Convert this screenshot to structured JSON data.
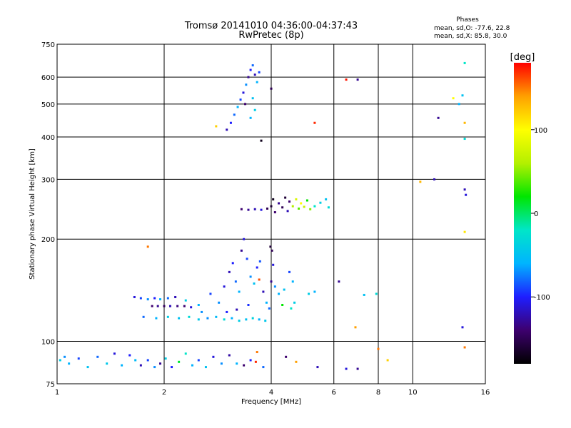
{
  "chart_data": {
    "type": "scatter",
    "title": "Tromsø 20141010 04:36:00-04:37:43",
    "subtitle": "RwPretec (8p)",
    "xlabel": "Frequency [MHz]",
    "ylabel": "Stationary phase Virtual Height [km]",
    "xscale": "log",
    "yscale": "log",
    "xlim": [
      1,
      16
    ],
    "ylim": [
      75,
      750
    ],
    "xticks": [
      1,
      2,
      4,
      6,
      8,
      10,
      16
    ],
    "yticks": [
      75,
      100,
      200,
      300,
      400,
      500,
      600,
      750
    ],
    "grid": true,
    "legend": {
      "heading": "Phases",
      "line1": "mean, sd,O:  -77.6, 22.8",
      "line2": "mean, sd,X:  85.8, 30.0",
      "placement": "top-right"
    },
    "colorbar": {
      "label": "[deg]",
      "range": [
        -180,
        180
      ],
      "ticks": [
        100,
        0,
        -100
      ],
      "colors": [
        "#000000",
        "#3d006e",
        "#1e1eff",
        "#00b4ff",
        "#00e6c8",
        "#00e600",
        "#b4f000",
        "#ffff00",
        "#ffa000",
        "#ff0000"
      ]
    },
    "series": [
      {
        "points": [
          {
            "x": 1.02,
            "y": 88,
            "p": -40
          },
          {
            "x": 1.05,
            "y": 90,
            "p": -70
          },
          {
            "x": 1.08,
            "y": 86,
            "p": -60
          },
          {
            "x": 1.15,
            "y": 89,
            "p": -90
          },
          {
            "x": 1.22,
            "y": 84,
            "p": -50
          },
          {
            "x": 1.3,
            "y": 90,
            "p": -80
          },
          {
            "x": 1.38,
            "y": 86,
            "p": -45
          },
          {
            "x": 1.45,
            "y": 92,
            "p": -110
          },
          {
            "x": 1.52,
            "y": 85,
            "p": -60
          },
          {
            "x": 1.6,
            "y": 91,
            "p": -100
          },
          {
            "x": 1.66,
            "y": 88,
            "p": -55
          },
          {
            "x": 1.72,
            "y": 85,
            "p": -120
          },
          {
            "x": 1.8,
            "y": 88,
            "p": -90
          },
          {
            "x": 1.88,
            "y": 84,
            "p": -70
          },
          {
            "x": 1.95,
            "y": 86,
            "p": -130
          },
          {
            "x": 2.02,
            "y": 89,
            "p": -40
          },
          {
            "x": 2.1,
            "y": 84,
            "p": -100
          },
          {
            "x": 2.2,
            "y": 87,
            "p": 10
          },
          {
            "x": 2.3,
            "y": 92,
            "p": -20
          },
          {
            "x": 2.4,
            "y": 85,
            "p": -60
          },
          {
            "x": 2.5,
            "y": 88,
            "p": -90
          },
          {
            "x": 2.62,
            "y": 84,
            "p": -50
          },
          {
            "x": 2.75,
            "y": 90,
            "p": -110
          },
          {
            "x": 2.9,
            "y": 86,
            "p": -70
          },
          {
            "x": 3.05,
            "y": 91,
            "p": -125
          },
          {
            "x": 3.2,
            "y": 86,
            "p": -60
          },
          {
            "x": 3.35,
            "y": 85,
            "p": -140
          },
          {
            "x": 3.5,
            "y": 88,
            "p": -100
          },
          {
            "x": 3.62,
            "y": 87,
            "p": 170
          },
          {
            "x": 3.65,
            "y": 93,
            "p": 150
          },
          {
            "x": 3.8,
            "y": 84,
            "p": -80
          },
          {
            "x": 4.4,
            "y": 90,
            "p": -140
          },
          {
            "x": 4.7,
            "y": 87,
            "p": 140
          },
          {
            "x": 5.4,
            "y": 84,
            "p": -120
          },
          {
            "x": 6.5,
            "y": 83,
            "p": -110
          },
          {
            "x": 7.0,
            "y": 83,
            "p": -130
          },
          {
            "x": 8.0,
            "y": 95,
            "p": 150
          },
          {
            "x": 8.5,
            "y": 88,
            "p": 120
          },
          {
            "x": 14.0,
            "y": 96,
            "p": 150
          },
          {
            "x": 1.65,
            "y": 135,
            "p": -110
          },
          {
            "x": 1.72,
            "y": 134,
            "p": -90
          },
          {
            "x": 1.8,
            "y": 133,
            "p": -70
          },
          {
            "x": 1.88,
            "y": 134,
            "p": -100
          },
          {
            "x": 1.95,
            "y": 133,
            "p": -60
          },
          {
            "x": 2.05,
            "y": 134,
            "p": -80
          },
          {
            "x": 2.15,
            "y": 135,
            "p": -120
          },
          {
            "x": 1.85,
            "y": 127,
            "p": -140
          },
          {
            "x": 1.92,
            "y": 127,
            "p": -130
          },
          {
            "x": 2.0,
            "y": 127,
            "p": -145
          },
          {
            "x": 2.08,
            "y": 127,
            "p": -120
          },
          {
            "x": 2.18,
            "y": 127,
            "p": -135
          },
          {
            "x": 2.28,
            "y": 127,
            "p": -140
          },
          {
            "x": 2.38,
            "y": 126,
            "p": -110
          },
          {
            "x": 1.75,
            "y": 118,
            "p": -80
          },
          {
            "x": 1.9,
            "y": 117,
            "p": -60
          },
          {
            "x": 2.05,
            "y": 118,
            "p": -40
          },
          {
            "x": 2.2,
            "y": 117,
            "p": -50
          },
          {
            "x": 2.35,
            "y": 118,
            "p": -30
          },
          {
            "x": 2.5,
            "y": 116,
            "p": -45
          },
          {
            "x": 2.65,
            "y": 117,
            "p": -70
          },
          {
            "x": 2.8,
            "y": 118,
            "p": -55
          },
          {
            "x": 2.95,
            "y": 116,
            "p": -30
          },
          {
            "x": 3.1,
            "y": 117,
            "p": -60
          },
          {
            "x": 3.25,
            "y": 115,
            "p": -40
          },
          {
            "x": 3.4,
            "y": 116,
            "p": -50
          },
          {
            "x": 3.55,
            "y": 117,
            "p": -35
          },
          {
            "x": 3.7,
            "y": 116,
            "p": -60
          },
          {
            "x": 3.85,
            "y": 115,
            "p": -45
          },
          {
            "x": 2.3,
            "y": 132,
            "p": -40
          },
          {
            "x": 2.5,
            "y": 128,
            "p": -60
          },
          {
            "x": 2.7,
            "y": 138,
            "p": -90
          },
          {
            "x": 2.85,
            "y": 130,
            "p": -70
          },
          {
            "x": 2.95,
            "y": 145,
            "p": -110
          },
          {
            "x": 3.05,
            "y": 160,
            "p": -120
          },
          {
            "x": 3.12,
            "y": 170,
            "p": -100
          },
          {
            "x": 3.18,
            "y": 150,
            "p": -80
          },
          {
            "x": 3.25,
            "y": 140,
            "p": -60
          },
          {
            "x": 3.3,
            "y": 185,
            "p": -130
          },
          {
            "x": 3.35,
            "y": 200,
            "p": -110
          },
          {
            "x": 3.42,
            "y": 175,
            "p": -90
          },
          {
            "x": 3.5,
            "y": 155,
            "p": -70
          },
          {
            "x": 3.58,
            "y": 148,
            "p": -50
          },
          {
            "x": 3.65,
            "y": 165,
            "p": -100
          },
          {
            "x": 3.72,
            "y": 172,
            "p": -85
          },
          {
            "x": 3.8,
            "y": 140,
            "p": -120
          },
          {
            "x": 3.88,
            "y": 130,
            "p": -60
          },
          {
            "x": 3.95,
            "y": 125,
            "p": -80
          },
          {
            "x": 4.0,
            "y": 150,
            "p": -130
          },
          {
            "x": 4.05,
            "y": 168,
            "p": -110
          },
          {
            "x": 4.02,
            "y": 185,
            "p": -150
          },
          {
            "x": 3.98,
            "y": 190,
            "p": -160
          },
          {
            "x": 4.1,
            "y": 145,
            "p": -70
          },
          {
            "x": 4.2,
            "y": 138,
            "p": -60
          },
          {
            "x": 4.35,
            "y": 142,
            "p": -50
          },
          {
            "x": 4.5,
            "y": 160,
            "p": -90
          },
          {
            "x": 4.6,
            "y": 150,
            "p": -60
          },
          {
            "x": 4.65,
            "y": 130,
            "p": -40
          },
          {
            "x": 4.55,
            "y": 125,
            "p": -20
          },
          {
            "x": 4.3,
            "y": 128,
            "p": 20
          },
          {
            "x": 5.1,
            "y": 138,
            "p": -40
          },
          {
            "x": 5.3,
            "y": 140,
            "p": -60
          },
          {
            "x": 3.0,
            "y": 122,
            "p": -100
          },
          {
            "x": 3.2,
            "y": 124,
            "p": -120
          },
          {
            "x": 3.45,
            "y": 128,
            "p": -95
          },
          {
            "x": 2.55,
            "y": 122,
            "p": -70
          },
          {
            "x": 1.8,
            "y": 190,
            "p": 150
          },
          {
            "x": 3.7,
            "y": 152,
            "p": 160
          },
          {
            "x": 6.2,
            "y": 150,
            "p": -130
          },
          {
            "x": 6.9,
            "y": 110,
            "p": 140
          },
          {
            "x": 7.3,
            "y": 137,
            "p": -50
          },
          {
            "x": 7.9,
            "y": 138,
            "p": -30
          },
          {
            "x": 13.8,
            "y": 110,
            "p": -110
          },
          {
            "x": 3.3,
            "y": 245,
            "p": -140
          },
          {
            "x": 3.45,
            "y": 244,
            "p": -130
          },
          {
            "x": 3.6,
            "y": 245,
            "p": -120
          },
          {
            "x": 3.75,
            "y": 244,
            "p": -110
          },
          {
            "x": 3.9,
            "y": 246,
            "p": -150
          },
          {
            "x": 4.0,
            "y": 250,
            "p": -160
          },
          {
            "x": 4.05,
            "y": 262,
            "p": -170
          },
          {
            "x": 4.1,
            "y": 240,
            "p": -140
          },
          {
            "x": 4.2,
            "y": 255,
            "p": -130
          },
          {
            "x": 4.3,
            "y": 248,
            "p": -150
          },
          {
            "x": 4.38,
            "y": 265,
            "p": -160
          },
          {
            "x": 4.45,
            "y": 242,
            "p": -120
          },
          {
            "x": 4.5,
            "y": 258,
            "p": -140
          },
          {
            "x": 4.6,
            "y": 250,
            "p": 60
          },
          {
            "x": 4.7,
            "y": 262,
            "p": 80
          },
          {
            "x": 4.78,
            "y": 246,
            "p": 40
          },
          {
            "x": 4.85,
            "y": 255,
            "p": 100
          },
          {
            "x": 4.95,
            "y": 249,
            "p": 70
          },
          {
            "x": 5.05,
            "y": 260,
            "p": 20
          },
          {
            "x": 5.15,
            "y": 245,
            "p": 50
          },
          {
            "x": 5.3,
            "y": 250,
            "p": -20
          },
          {
            "x": 5.5,
            "y": 256,
            "p": -40
          },
          {
            "x": 5.7,
            "y": 262,
            "p": -50
          },
          {
            "x": 5.8,
            "y": 248,
            "p": -30
          },
          {
            "x": 3.0,
            "y": 420,
            "p": -120
          },
          {
            "x": 3.08,
            "y": 440,
            "p": -100
          },
          {
            "x": 3.15,
            "y": 465,
            "p": -80
          },
          {
            "x": 3.22,
            "y": 490,
            "p": -60
          },
          {
            "x": 3.28,
            "y": 515,
            "p": -90
          },
          {
            "x": 3.34,
            "y": 540,
            "p": -110
          },
          {
            "x": 3.4,
            "y": 570,
            "p": -70
          },
          {
            "x": 3.45,
            "y": 600,
            "p": -130
          },
          {
            "x": 3.5,
            "y": 630,
            "p": -100
          },
          {
            "x": 3.55,
            "y": 650,
            "p": -80
          },
          {
            "x": 3.6,
            "y": 610,
            "p": -120
          },
          {
            "x": 3.65,
            "y": 580,
            "p": -60
          },
          {
            "x": 3.7,
            "y": 620,
            "p": -90
          },
          {
            "x": 3.55,
            "y": 520,
            "p": -50
          },
          {
            "x": 3.6,
            "y": 480,
            "p": -40
          },
          {
            "x": 3.5,
            "y": 455,
            "p": -60
          },
          {
            "x": 3.38,
            "y": 500,
            "p": -140
          },
          {
            "x": 3.75,
            "y": 390,
            "p": -170
          },
          {
            "x": 2.8,
            "y": 430,
            "p": 120
          },
          {
            "x": 4.0,
            "y": 555,
            "p": -150
          },
          {
            "x": 5.3,
            "y": 440,
            "p": 170
          },
          {
            "x": 6.5,
            "y": 590,
            "p": 175
          },
          {
            "x": 7.0,
            "y": 590,
            "p": -130
          },
          {
            "x": 10.5,
            "y": 295,
            "p": 130
          },
          {
            "x": 11.5,
            "y": 300,
            "p": -120
          },
          {
            "x": 11.8,
            "y": 455,
            "p": -130
          },
          {
            "x": 13.0,
            "y": 520,
            "p": 100
          },
          {
            "x": 13.5,
            "y": 500,
            "p": -60
          },
          {
            "x": 13.8,
            "y": 530,
            "p": -50
          },
          {
            "x": 14.0,
            "y": 660,
            "p": -20
          },
          {
            "x": 14.0,
            "y": 440,
            "p": 130
          },
          {
            "x": 14.0,
            "y": 395,
            "p": -30
          },
          {
            "x": 14.0,
            "y": 280,
            "p": -120
          },
          {
            "x": 14.1,
            "y": 270,
            "p": -110
          },
          {
            "x": 14.0,
            "y": 210,
            "p": 110
          }
        ]
      }
    ]
  }
}
